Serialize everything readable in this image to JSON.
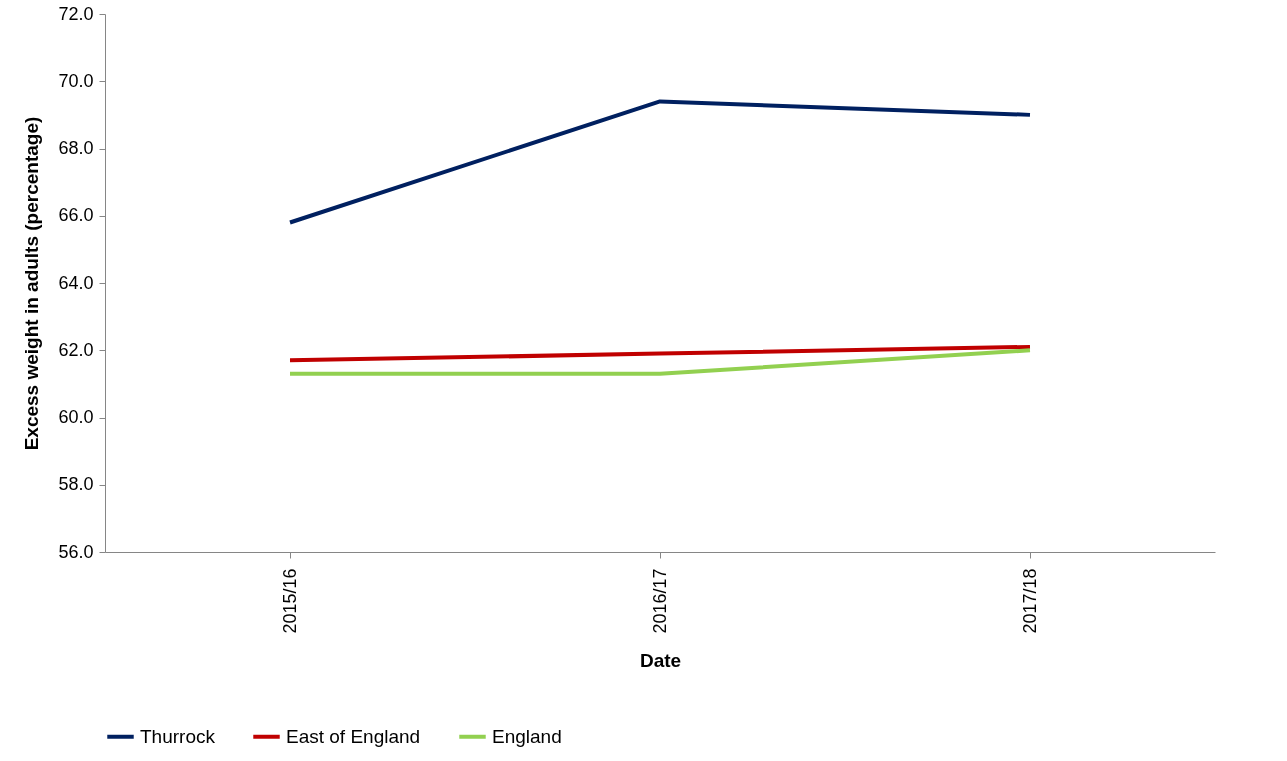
{
  "chart_data": {
    "type": "line",
    "xlabel": "Date",
    "ylabel": "Excess weight in adults (percentage)",
    "categories": [
      "2015/16",
      "2016/17",
      "2017/18"
    ],
    "series": [
      {
        "name": "Thurrock",
        "color": "#002060",
        "values": [
          65.8,
          69.4,
          69.0
        ]
      },
      {
        "name": "East of England",
        "color": "#c00000",
        "values": [
          61.7,
          61.9,
          62.1
        ]
      },
      {
        "name": "England",
        "color": "#92d050",
        "values": [
          61.3,
          61.3,
          62.0
        ]
      }
    ],
    "ylim": [
      56,
      72
    ],
    "yticks": [
      {
        "value": 56,
        "label": "56.0"
      },
      {
        "value": 58,
        "label": "58.0"
      },
      {
        "value": 60,
        "label": "60.0"
      },
      {
        "value": 62,
        "label": "62.0"
      },
      {
        "value": 64,
        "label": "64.0"
      },
      {
        "value": 66,
        "label": "66.0"
      },
      {
        "value": 68,
        "label": "68.0"
      },
      {
        "value": 70,
        "label": "70.0"
      },
      {
        "value": 72,
        "label": "72.0"
      }
    ],
    "grid": false,
    "legend": "bottom",
    "marker": "none",
    "line_style": "solid"
  }
}
